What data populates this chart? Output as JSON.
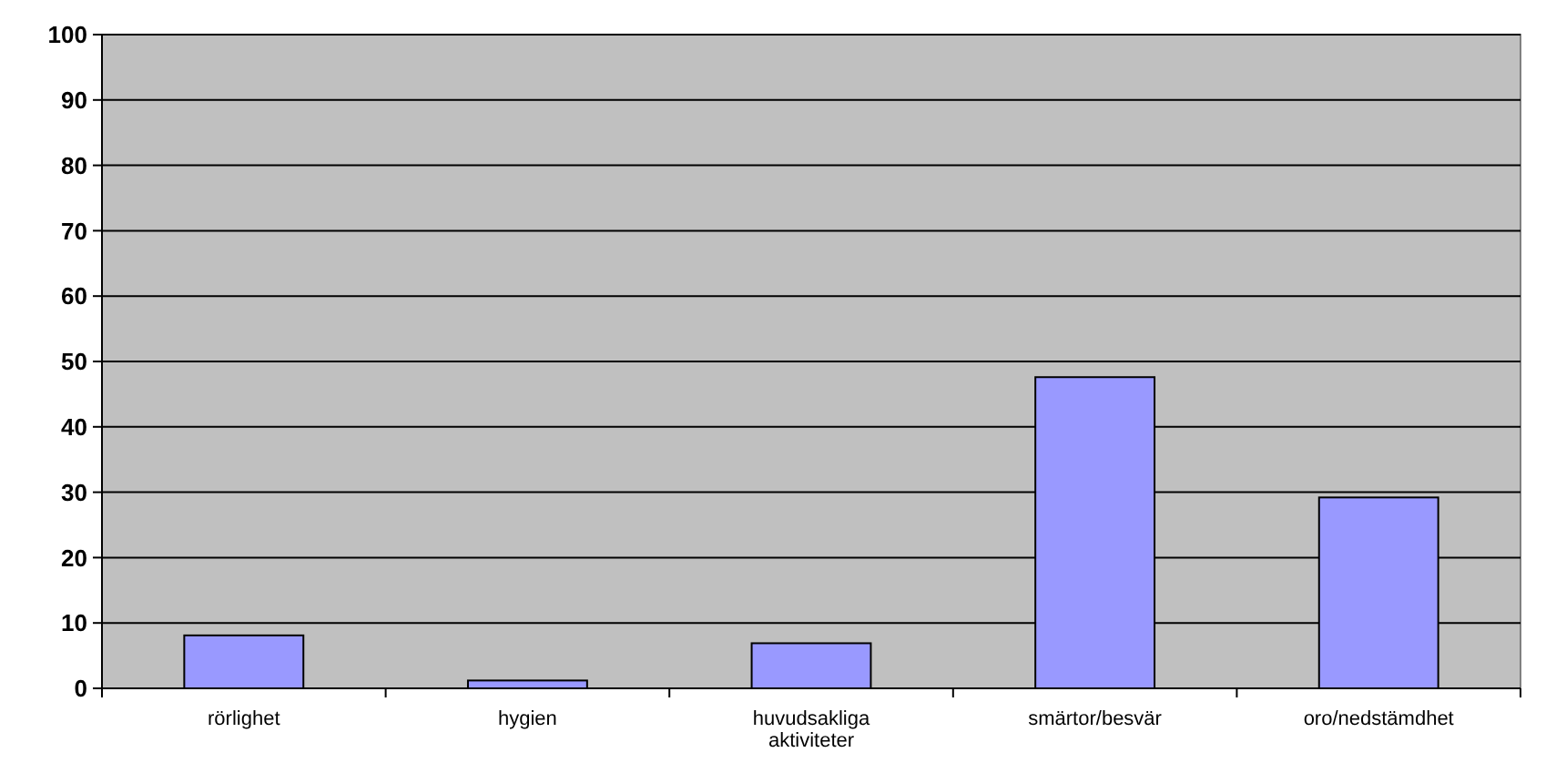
{
  "chart_data": {
    "type": "bar",
    "categories": [
      "rörlighet",
      "hygien",
      "huvudsakliga aktiviteter",
      "smärtor/besvär",
      "oro/nedstämdhet"
    ],
    "values": [
      8.1,
      1.2,
      6.9,
      47.6,
      29.2
    ],
    "color": "#9999ff",
    "ylim": [
      0,
      100
    ],
    "yticks": [
      0,
      10,
      20,
      30,
      40,
      50,
      60,
      70,
      80,
      90,
      100
    ],
    "grid": "y"
  }
}
